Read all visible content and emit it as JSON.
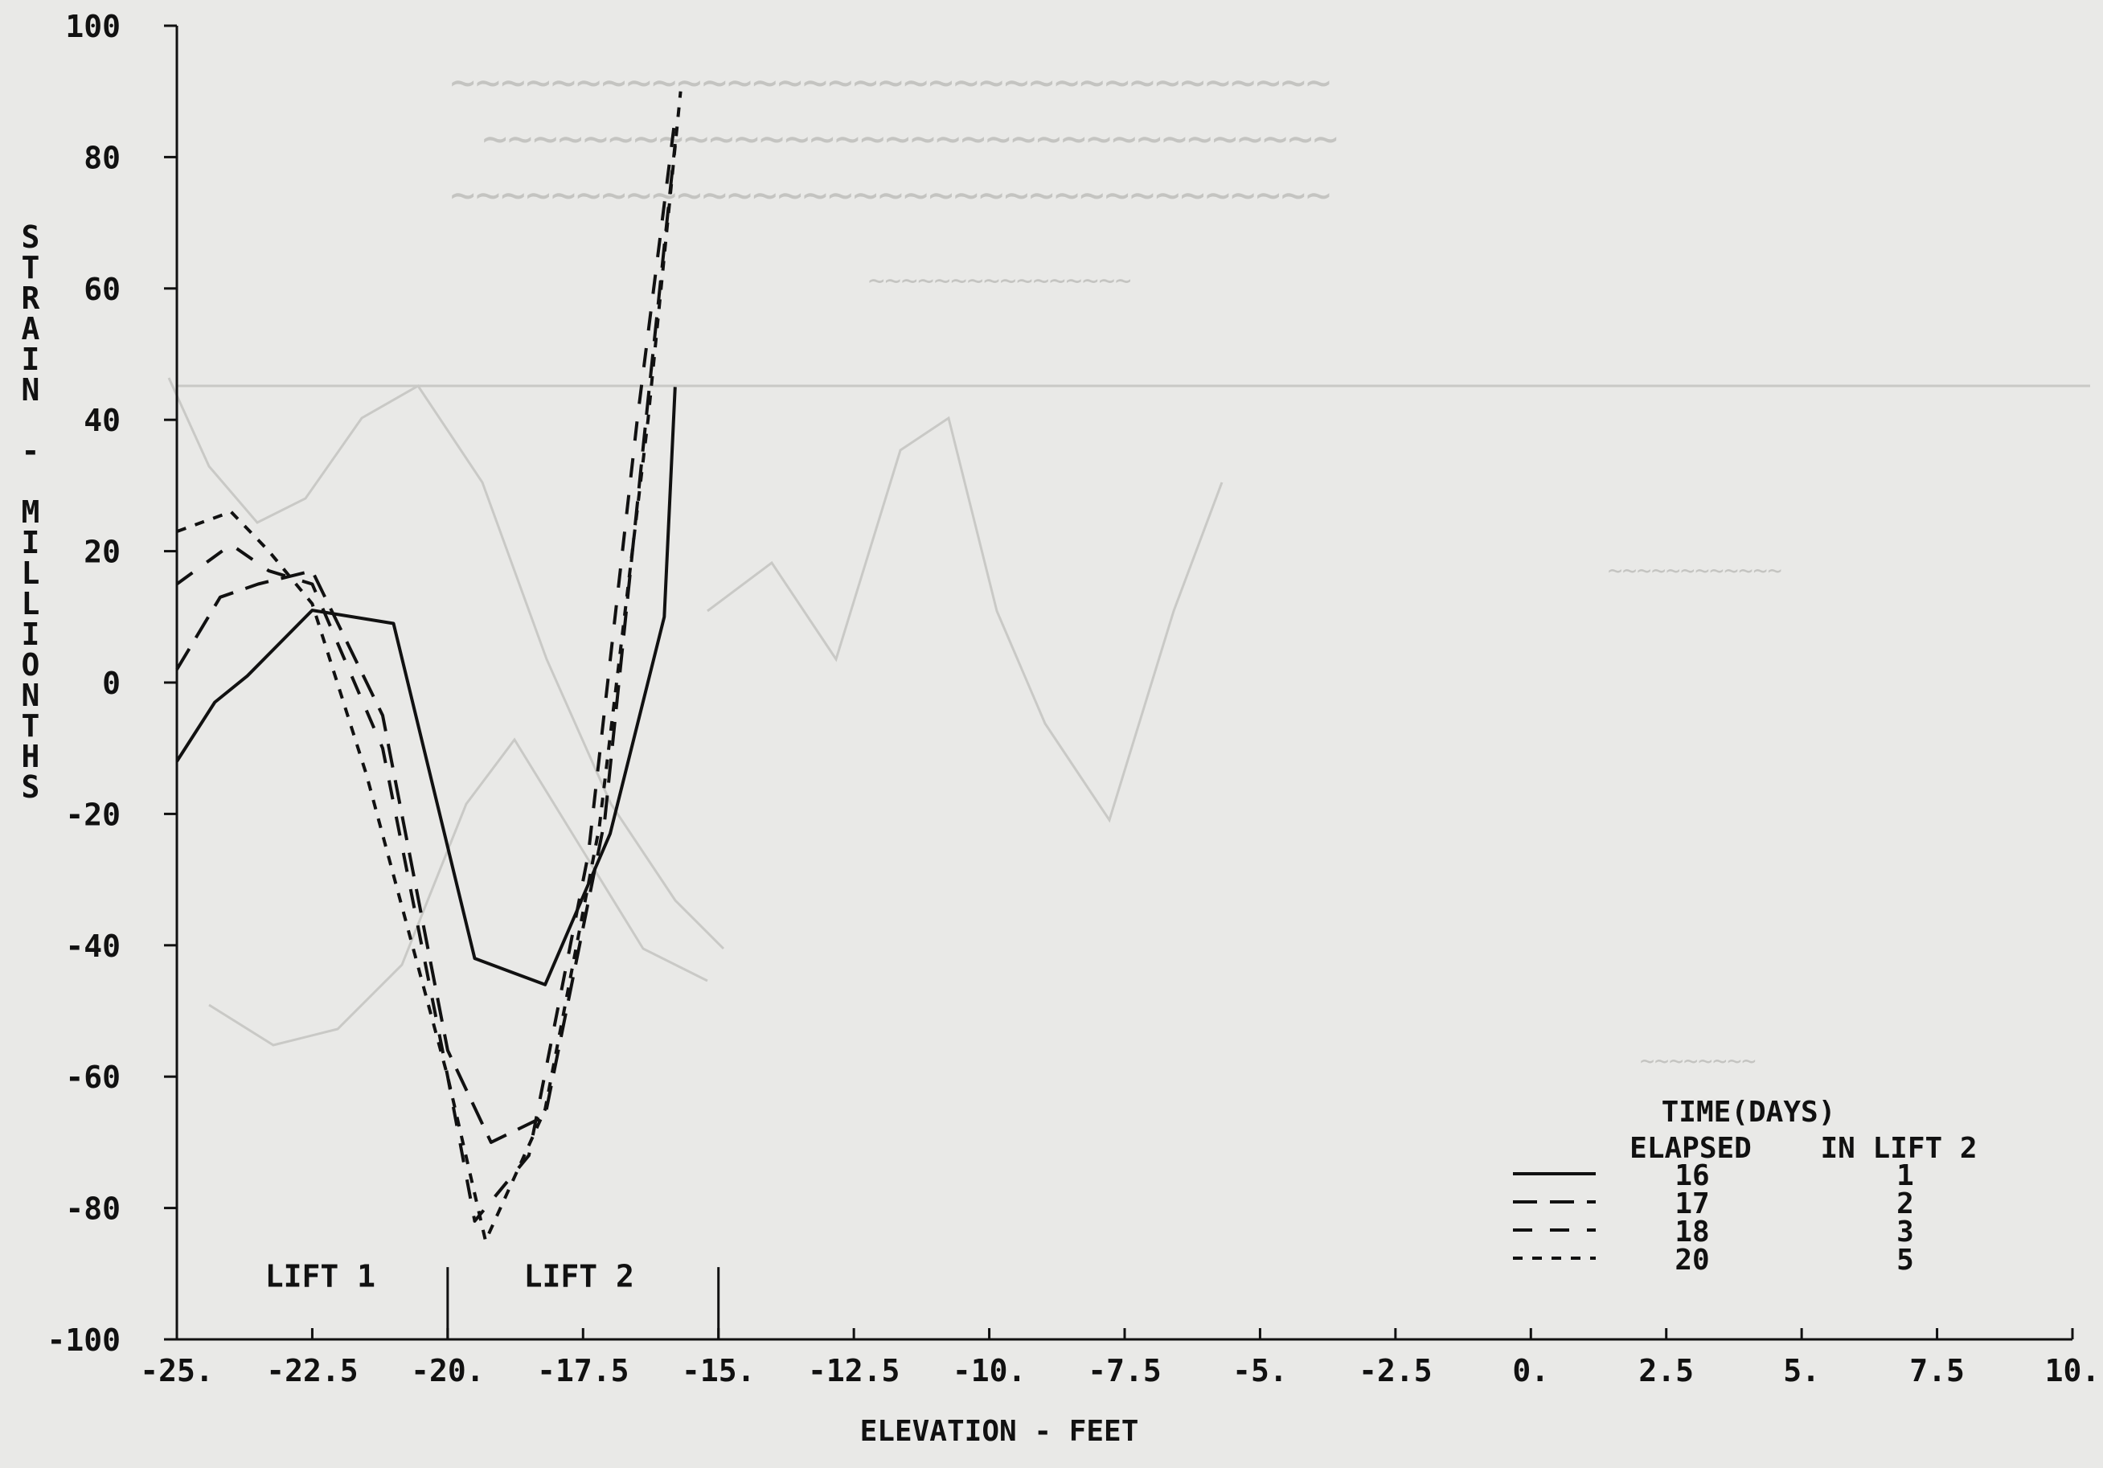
{
  "chart_data": {
    "type": "line",
    "title": "",
    "xlabel": "ELEVATION - FEET",
    "ylabel": "STRAIN - MILLIONTHS",
    "xlim": [
      -25,
      10
    ],
    "ylim": [
      -100,
      100
    ],
    "grid": false,
    "xticks": [
      -25,
      -22.5,
      -20,
      -17.5,
      -15,
      -12.5,
      -10,
      -7.5,
      -5,
      -2.5,
      0,
      2.5,
      5,
      7.5,
      10
    ],
    "xtick_labels": [
      "-25.",
      "-22.5",
      "-20.",
      "-17.5",
      "-15.",
      "-12.5",
      "-10.",
      "-7.5",
      "-5.",
      "-2.5",
      "0.",
      "2.5",
      "5.",
      "7.5",
      "10."
    ],
    "yticks": [
      -100,
      -80,
      -60,
      -40,
      -20,
      0,
      20,
      40,
      60,
      80,
      100
    ],
    "ytick_labels": [
      "-100",
      "-80",
      "-60",
      "-40",
      "-20",
      "0",
      "20",
      "40",
      "60",
      "80",
      "100"
    ],
    "regions": [
      {
        "label": "LIFT 1",
        "from": -25,
        "to": -20
      },
      {
        "label": "LIFT 2",
        "from": -20,
        "to": -15
      }
    ],
    "legend": {
      "placement": "lower-right",
      "title": "TIME(DAYS)",
      "col1_header": "ELAPSED",
      "col2_header": "IN LIFT 2"
    },
    "series": [
      {
        "elapsed": "16",
        "in_lift2": "1",
        "dash": "solid",
        "points": [
          [
            -25,
            -12
          ],
          [
            -24.3,
            -3
          ],
          [
            -23.7,
            1
          ],
          [
            -22.5,
            11
          ],
          [
            -21,
            9
          ],
          [
            -19.5,
            -42
          ],
          [
            -18.2,
            -46
          ],
          [
            -17,
            -23
          ],
          [
            -16,
            10
          ],
          [
            -15.8,
            45
          ]
        ]
      },
      {
        "elapsed": "17",
        "in_lift2": "2",
        "dash": "long",
        "points": [
          [
            -25,
            2
          ],
          [
            -24.2,
            13
          ],
          [
            -23.5,
            15
          ],
          [
            -22.5,
            17
          ],
          [
            -21.2,
            -5
          ],
          [
            -20,
            -56
          ],
          [
            -19.2,
            -70
          ],
          [
            -18.2,
            -66
          ],
          [
            -17.1,
            -21
          ],
          [
            -16.3,
            43
          ],
          [
            -15.8,
            82
          ]
        ]
      },
      {
        "elapsed": "18",
        "in_lift2": "3",
        "dash": "medium",
        "points": [
          [
            -25,
            15
          ],
          [
            -24,
            21
          ],
          [
            -23.3,
            17
          ],
          [
            -22.5,
            15
          ],
          [
            -21.2,
            -10
          ],
          [
            -20,
            -60
          ],
          [
            -19.5,
            -82
          ],
          [
            -18.5,
            -72
          ],
          [
            -17.4,
            -26
          ],
          [
            -16.5,
            40
          ],
          [
            -15.8,
            86
          ]
        ]
      },
      {
        "elapsed": "20",
        "in_lift2": "5",
        "dash": "short",
        "points": [
          [
            -25,
            23
          ],
          [
            -24,
            26
          ],
          [
            -23.3,
            20
          ],
          [
            -22.5,
            12
          ],
          [
            -21.5,
            -14
          ],
          [
            -20,
            -60
          ],
          [
            -19.3,
            -85
          ],
          [
            -18.2,
            -65
          ],
          [
            -17.2,
            -22
          ],
          [
            -16.3,
            40
          ],
          [
            -15.7,
            90
          ]
        ]
      }
    ]
  }
}
